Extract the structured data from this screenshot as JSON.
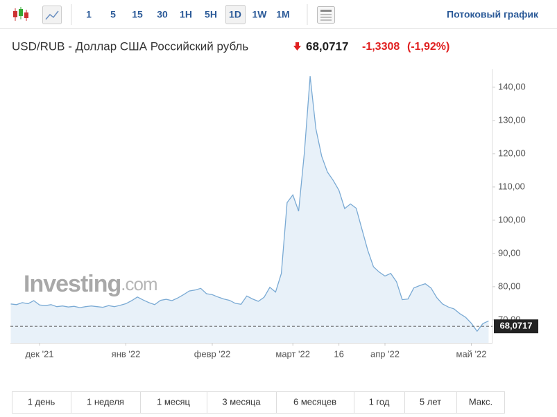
{
  "toolbar": {
    "intervals": [
      "1",
      "5",
      "15",
      "30",
      "1H",
      "5H",
      "1D",
      "1W",
      "1M"
    ],
    "selected_interval": 6,
    "streaming_link": "Потоковый график"
  },
  "chart_data": {
    "type": "area",
    "title": "USD/RUB - Доллар США Российский рубль",
    "price": {
      "value": 68.0717,
      "label": "68,0717"
    },
    "change": "-1,3308",
    "change_pct": "(-1,92%)",
    "watermark_brand": "Investing",
    "watermark_domain": ".com",
    "color": "#7aaad4",
    "fill": "#e6eff8",
    "grid": false,
    "categories": [
      null,
      null,
      null,
      null,
      null,
      "дек '21",
      null,
      null,
      null,
      null,
      null,
      null,
      null,
      null,
      null,
      null,
      null,
      null,
      null,
      null,
      "янв '22",
      null,
      null,
      null,
      null,
      null,
      null,
      null,
      null,
      null,
      null,
      null,
      null,
      null,
      null,
      "февр '22",
      null,
      null,
      null,
      null,
      null,
      null,
      null,
      null,
      null,
      null,
      null,
      null,
      null,
      "март '22",
      null,
      null,
      null,
      null,
      null,
      null,
      null,
      "16",
      null,
      null,
      null,
      null,
      null,
      null,
      null,
      "апр '22",
      null,
      null,
      null,
      null,
      null,
      null,
      null,
      null,
      null,
      null,
      null,
      null,
      null,
      null,
      "май '22",
      null,
      null,
      null
    ],
    "values": [
      74.8,
      74.6,
      75.2,
      74.9,
      75.8,
      74.5,
      74.3,
      74.6,
      74.0,
      74.2,
      73.9,
      74.1,
      73.7,
      74.0,
      74.2,
      74.0,
      73.8,
      74.3,
      74.0,
      74.4,
      74.9,
      75.8,
      76.9,
      76.0,
      75.2,
      74.6,
      75.9,
      76.2,
      75.8,
      76.6,
      77.6,
      78.7,
      79.0,
      79.5,
      77.9,
      77.6,
      76.9,
      76.3,
      75.9,
      75.0,
      74.7,
      77.2,
      76.3,
      75.6,
      76.8,
      79.8,
      78.4,
      84.0,
      105.3,
      107.6,
      102.7,
      120.3,
      143.3,
      127.5,
      119.3,
      114.5,
      112.0,
      109.0,
      103.5,
      104.9,
      103.6,
      97.3,
      91.0,
      86.0,
      84.4,
      83.2,
      84.0,
      81.5,
      76.1,
      76.3,
      79.6,
      80.3,
      80.9,
      79.6,
      76.7,
      74.8,
      73.9,
      73.3,
      71.9,
      70.8,
      69.0,
      66.6,
      68.9,
      69.7
    ],
    "ylim": [
      63.1,
      145.4
    ],
    "yticks": [
      {
        "value": 70,
        "label": "70,00"
      },
      {
        "value": 80,
        "label": "80,00"
      },
      {
        "value": 90,
        "label": "90,00"
      },
      {
        "value": 100,
        "label": "100,00"
      },
      {
        "value": 110,
        "label": "110,00"
      },
      {
        "value": 120,
        "label": "120,00"
      },
      {
        "value": 130,
        "label": "130,00"
      },
      {
        "value": 140,
        "label": "140,00"
      }
    ]
  },
  "range_tabs": [
    "1 день",
    "1 неделя",
    "1 месяц",
    "3 месяца",
    "6 месяцев",
    "1 год",
    "5 лет",
    "Макс."
  ]
}
